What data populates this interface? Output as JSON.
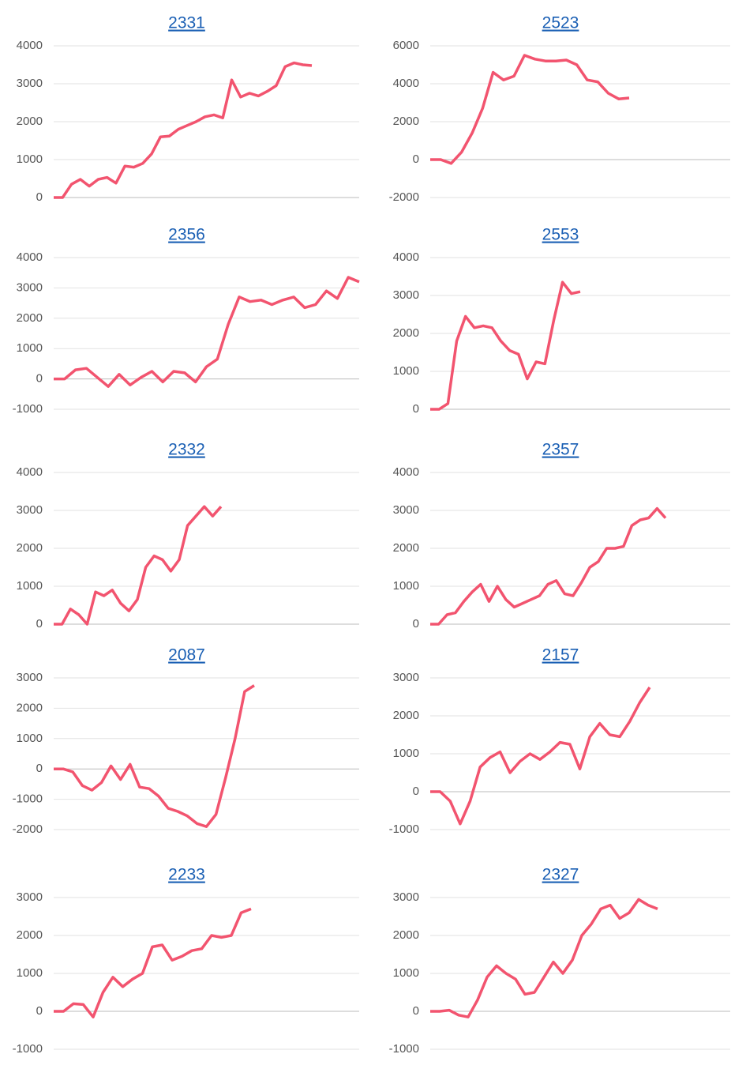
{
  "chart_data": [
    {
      "type": "line",
      "title": "2331",
      "ylim": [
        0,
        4000
      ],
      "yticks": [
        0,
        1000,
        2000,
        3000,
        4000
      ],
      "grid": true,
      "series": [
        {
          "color": "#f2546f",
          "values": [
            0,
            0,
            350,
            480,
            300,
            480,
            530,
            380,
            830,
            800,
            900,
            1150,
            1600,
            1620,
            1800,
            1900,
            2000,
            2130,
            2180,
            2100,
            3100,
            2650,
            2750,
            2680,
            2800,
            2950,
            3450,
            3550,
            3500,
            3480
          ]
        }
      ]
    },
    {
      "type": "line",
      "title": "2523",
      "ylim": [
        -2000,
        6000
      ],
      "yticks": [
        -2000,
        0,
        2000,
        4000,
        6000
      ],
      "grid": true,
      "series": [
        {
          "color": "#f2546f",
          "values": [
            0,
            0,
            -200,
            400,
            1400,
            2700,
            4600,
            4200,
            4400,
            5500,
            5300,
            5200,
            5200,
            5250,
            5000,
            4200,
            4100,
            3500,
            3200,
            3250
          ]
        }
      ]
    },
    {
      "type": "line",
      "title": "2356",
      "ylim": [
        -1000,
        4000
      ],
      "yticks": [
        -1000,
        0,
        1000,
        2000,
        3000,
        4000
      ],
      "grid": true,
      "series": [
        {
          "color": "#f2546f",
          "values": [
            0,
            0,
            300,
            350,
            50,
            -250,
            150,
            -200,
            50,
            250,
            -100,
            250,
            200,
            -100,
            400,
            650,
            1800,
            2700,
            2550,
            2600,
            2450,
            2600,
            2700,
            2350,
            2450,
            2900,
            2650,
            3350,
            3200
          ]
        }
      ]
    },
    {
      "type": "line",
      "title": "2553",
      "ylim": [
        0,
        4000
      ],
      "yticks": [
        0,
        1000,
        2000,
        3000,
        4000
      ],
      "grid": true,
      "series": [
        {
          "color": "#f2546f",
          "values": [
            0,
            0,
            150,
            1800,
            2450,
            2150,
            2200,
            2150,
            1800,
            1550,
            1450,
            800,
            1250,
            1200,
            2350,
            3350,
            3050,
            3100
          ]
        }
      ]
    },
    {
      "type": "line",
      "title": "2332",
      "ylim": [
        0,
        4000
      ],
      "yticks": [
        0,
        1000,
        2000,
        3000,
        4000
      ],
      "grid": true,
      "series": [
        {
          "color": "#f2546f",
          "values": [
            0,
            0,
            400,
            250,
            0,
            850,
            750,
            900,
            550,
            350,
            650,
            1500,
            1800,
            1700,
            1400,
            1700,
            2600,
            2850,
            3100,
            2850,
            3100
          ]
        }
      ]
    },
    {
      "type": "line",
      "title": "2357",
      "ylim": [
        0,
        4000
      ],
      "yticks": [
        0,
        1000,
        2000,
        3000,
        4000
      ],
      "grid": true,
      "series": [
        {
          "color": "#f2546f",
          "values": [
            0,
            0,
            250,
            300,
            600,
            850,
            1050,
            600,
            1000,
            650,
            450,
            550,
            650,
            750,
            1050,
            1150,
            800,
            750,
            1100,
            1500,
            1650,
            2000,
            2000,
            2050,
            2600,
            2750,
            2800,
            3050,
            2800
          ]
        }
      ]
    },
    {
      "type": "line",
      "title": "2087",
      "ylim": [
        -2000,
        3000
      ],
      "yticks": [
        -2000,
        -1000,
        0,
        1000,
        2000,
        3000
      ],
      "grid": true,
      "series": [
        {
          "color": "#f2546f",
          "values": [
            0,
            0,
            -100,
            -550,
            -700,
            -450,
            100,
            -350,
            150,
            -600,
            -650,
            -900,
            -1300,
            -1400,
            -1550,
            -1800,
            -1900,
            -1500,
            -300,
            1000,
            2550,
            2750
          ]
        }
      ]
    },
    {
      "type": "line",
      "title": "2157",
      "ylim": [
        -1000,
        3000
      ],
      "yticks": [
        -1000,
        0,
        1000,
        2000,
        3000
      ],
      "grid": true,
      "series": [
        {
          "color": "#f2546f",
          "values": [
            0,
            0,
            -250,
            -850,
            -250,
            650,
            900,
            1050,
            500,
            800,
            1000,
            850,
            1050,
            1300,
            1250,
            600,
            1450,
            1800,
            1500,
            1450,
            1850,
            2350,
            2750
          ]
        }
      ]
    },
    {
      "type": "line",
      "title": "2233",
      "ylim": [
        -1000,
        3000
      ],
      "yticks": [
        -1000,
        0,
        1000,
        2000,
        3000
      ],
      "grid": true,
      "series": [
        {
          "color": "#f2546f",
          "values": [
            0,
            0,
            200,
            180,
            -150,
            500,
            900,
            650,
            850,
            1000,
            1700,
            1750,
            1350,
            1450,
            1600,
            1650,
            2000,
            1950,
            2000,
            2600,
            2700
          ]
        }
      ]
    },
    {
      "type": "line",
      "title": "2327",
      "ylim": [
        -1000,
        3000
      ],
      "yticks": [
        -1000,
        0,
        1000,
        2000,
        3000
      ],
      "grid": true,
      "series": [
        {
          "color": "#f2546f",
          "values": [
            0,
            0,
            30,
            -100,
            -150,
            300,
            900,
            1200,
            1000,
            850,
            450,
            500,
            900,
            1300,
            1000,
            1350,
            2000,
            2300,
            2700,
            2800,
            2450,
            2600,
            2950,
            2800,
            2700
          ]
        }
      ]
    }
  ]
}
